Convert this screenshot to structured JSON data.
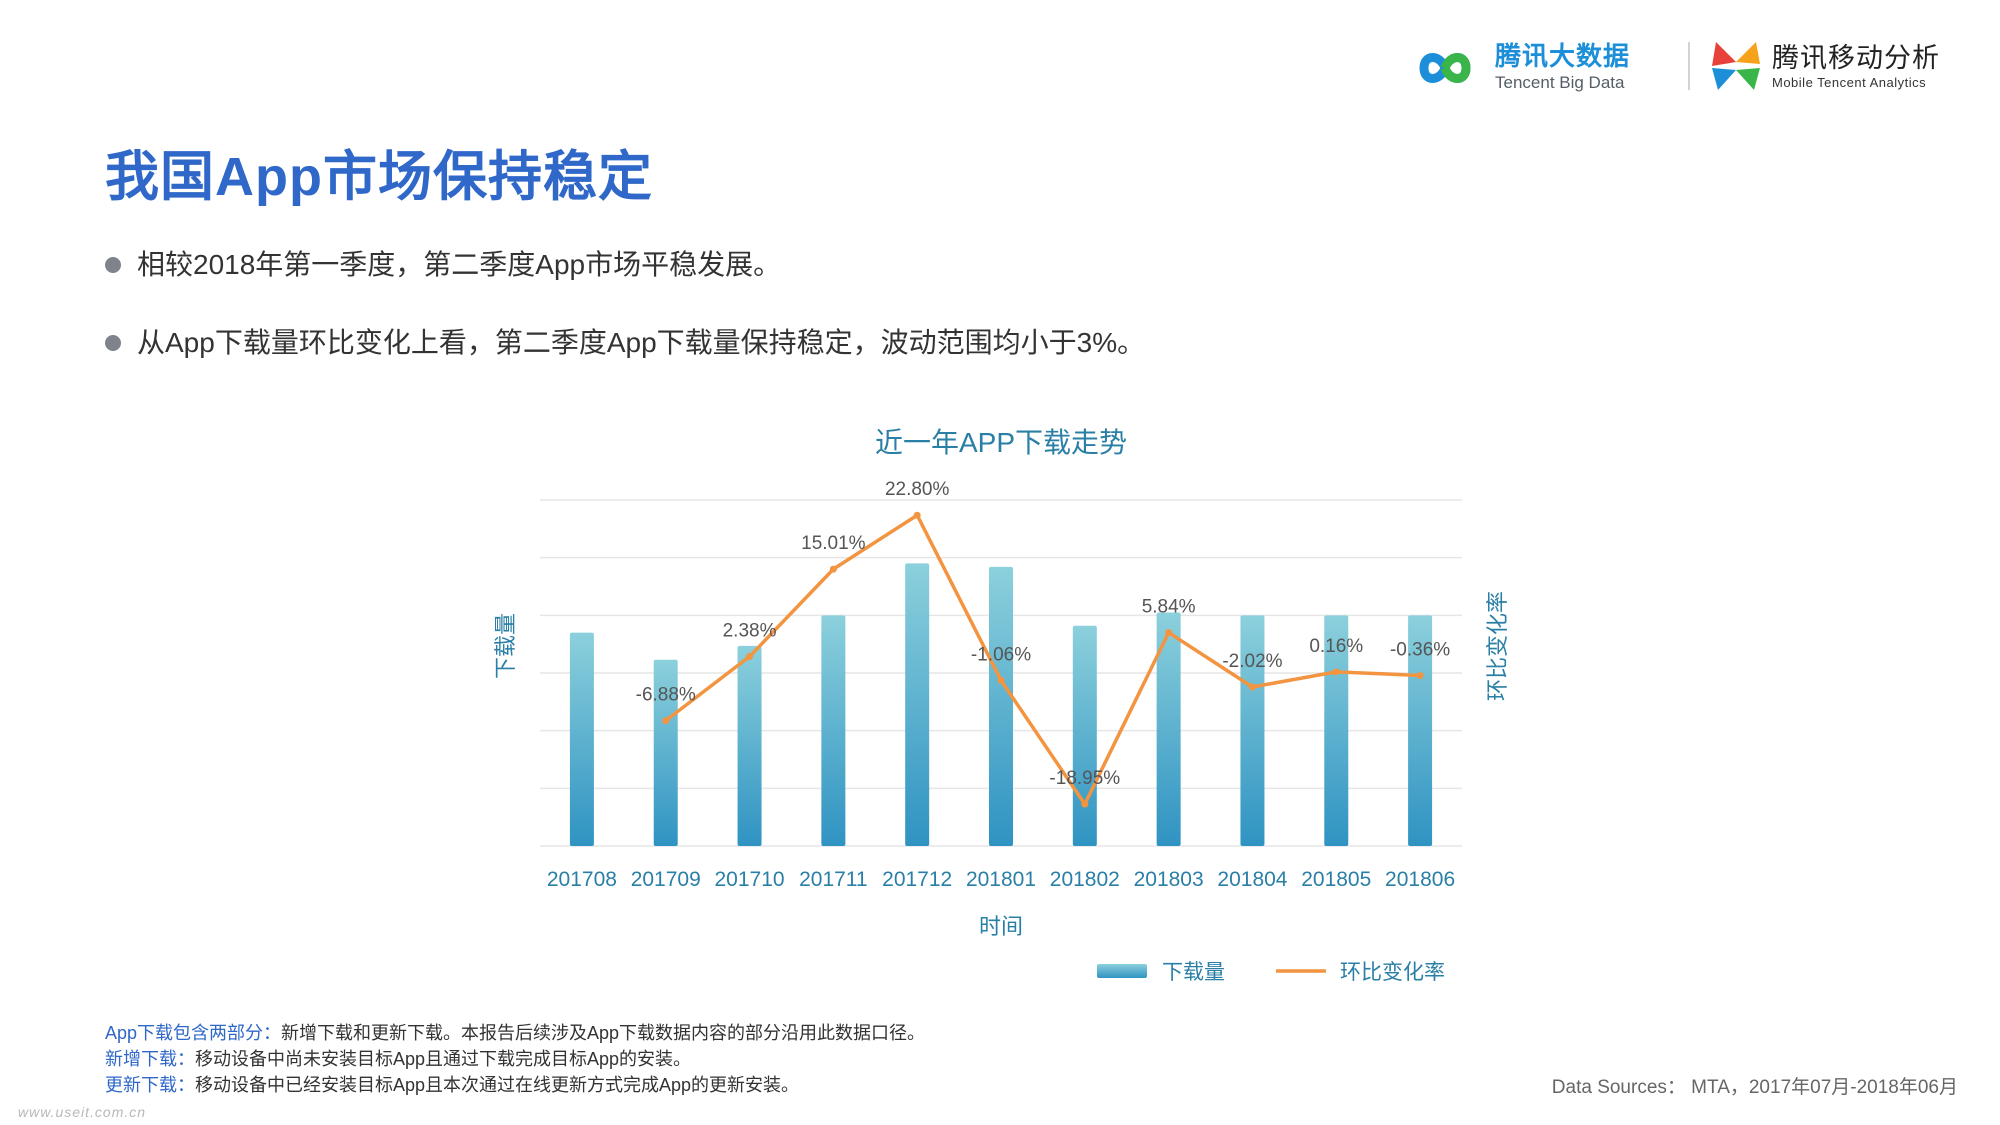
{
  "header": {
    "logo_left": {
      "title": "腾讯大数据",
      "subtitle": "Tencent Big Data"
    },
    "logo_right": {
      "title": "腾讯移动分析",
      "subtitle": "Mobile Tencent Analytics"
    }
  },
  "page": {
    "title": "我国App市场保持稳定",
    "bullets": [
      "相较2018年第一季度，第二季度App市场平稳发展。",
      "从App下载量环比变化上看，第二季度App下载量保持稳定，波动范围均小于3%。"
    ]
  },
  "chart_data": {
    "type": "bar",
    "title": "近一年APP下载走势",
    "xlabel": "时间",
    "ylabel_left": "下载量",
    "ylabel_right": "环比变化率",
    "categories": [
      "201708",
      "201709",
      "201710",
      "201711",
      "201712",
      "201801",
      "201802",
      "201803",
      "201804",
      "201805",
      "201806"
    ],
    "series": [
      {
        "name": "下载量",
        "kind": "bar",
        "values": [
          3.7,
          3.23,
          3.47,
          4.0,
          4.9,
          4.84,
          3.82,
          4.05,
          4.0,
          4.0,
          4.0
        ]
      },
      {
        "name": "环比变化率",
        "kind": "line",
        "axis": "right",
        "values": [
          null,
          -6.88,
          2.38,
          15.01,
          22.8,
          -1.06,
          -18.95,
          5.84,
          -2.02,
          0.16,
          -0.36
        ]
      }
    ],
    "point_labels": [
      "",
      "-6.88%",
      "2.38%",
      "15.01%",
      "22.80%",
      "-1.06%",
      "-18.95%",
      "5.84%",
      "-2.02%",
      "0.16%",
      "-0.36%"
    ],
    "ylim_left": [
      0,
      6
    ],
    "ylim_right": [
      -25,
      25
    ],
    "grid": true,
    "legend": "bottom-right",
    "colors": {
      "bar_top": "#8cd0dc",
      "bar_bottom": "#2f93c2",
      "line": "#f39440",
      "axis_text": "#2a7fa6",
      "grid": "#e6e6e6",
      "label": "#555555"
    }
  },
  "footnotes": [
    {
      "label": "App下载包含两部分：",
      "text": "新增下载和更新下载。本报告后续涉及App下载数据内容的部分沿用此数据口径。"
    },
    {
      "label": "新增下载：",
      "text": "移动设备中尚未安装目标App且通过下载完成目标App的安装。"
    },
    {
      "label": "更新下载：",
      "text": "移动设备中已经安装目标App且本次通过在线更新方式完成App的更新安装。"
    }
  ],
  "data_source": "Data Sources： MTA，2017年07月-2018年06月",
  "watermark": "www.useit.com.cn"
}
